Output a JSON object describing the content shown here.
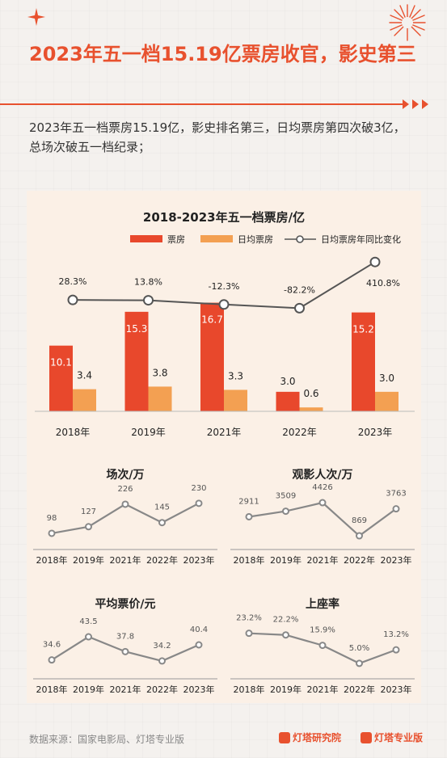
{
  "header": {
    "title": "2023年五一档15.19亿票房收官，影史第三",
    "subtitle": "2023年五一档票房15.19亿，影史排名第三，日均票房第四次破3亿，总场次破五一档纪录；"
  },
  "footer": {
    "source": "数据来源：国家电影局、灯塔专业版",
    "logo1": "灯塔研究院",
    "logo2": "灯塔专业版"
  },
  "colors": {
    "accent": "#e8512e",
    "bar_box_office": "#e8482c",
    "bar_daily": "#f3a052",
    "line": "#555555"
  },
  "chart_data": [
    {
      "type": "bar",
      "title": "2018-2023年五一档票房/亿",
      "categories": [
        "2018年",
        "2019年",
        "2021年",
        "2022年",
        "2023年"
      ],
      "series": [
        {
          "name": "票房",
          "values": [
            10.1,
            15.3,
            16.7,
            3.0,
            15.2
          ]
        },
        {
          "name": "日均票房",
          "values": [
            3.4,
            3.8,
            3.3,
            0.6,
            3.0
          ]
        }
      ],
      "line_series": {
        "name": "日均票房年同比变化",
        "values": [
          28.3,
          13.8,
          -12.3,
          -82.2,
          410.8
        ],
        "labels": [
          "28.3%",
          "13.8%",
          "-12.3%",
          "-82.2%",
          "410.8%"
        ]
      },
      "legend": "top"
    },
    {
      "type": "line",
      "title": "场次/万",
      "categories": [
        "2018年",
        "2019年",
        "2021年",
        "2022年",
        "2023年"
      ],
      "values": [
        98,
        127,
        226,
        145,
        230
      ],
      "labels": [
        "98",
        "127",
        "226",
        "145",
        "230"
      ]
    },
    {
      "type": "line",
      "title": "观影人次/万",
      "categories": [
        "2018年",
        "2019年",
        "2021年",
        "2022年",
        "2023年"
      ],
      "values": [
        2911,
        3509,
        4426,
        869,
        3763
      ],
      "labels": [
        "2911",
        "3509",
        "4426",
        "869",
        "3763"
      ]
    },
    {
      "type": "line",
      "title": "平均票价/元",
      "categories": [
        "2018年",
        "2019年",
        "2021年",
        "2022年",
        "2023年"
      ],
      "values": [
        34.6,
        43.5,
        37.8,
        34.2,
        40.4
      ],
      "labels": [
        "34.6",
        "43.5",
        "37.8",
        "34.2",
        "40.4"
      ]
    },
    {
      "type": "line",
      "title": "上座率",
      "categories": [
        "2018年",
        "2019年",
        "2021年",
        "2022年",
        "2023年"
      ],
      "values": [
        23.2,
        22.2,
        15.9,
        5.0,
        13.2
      ],
      "labels": [
        "23.2%",
        "22.2%",
        "15.9%",
        "5.0%",
        "13.2%"
      ]
    }
  ]
}
